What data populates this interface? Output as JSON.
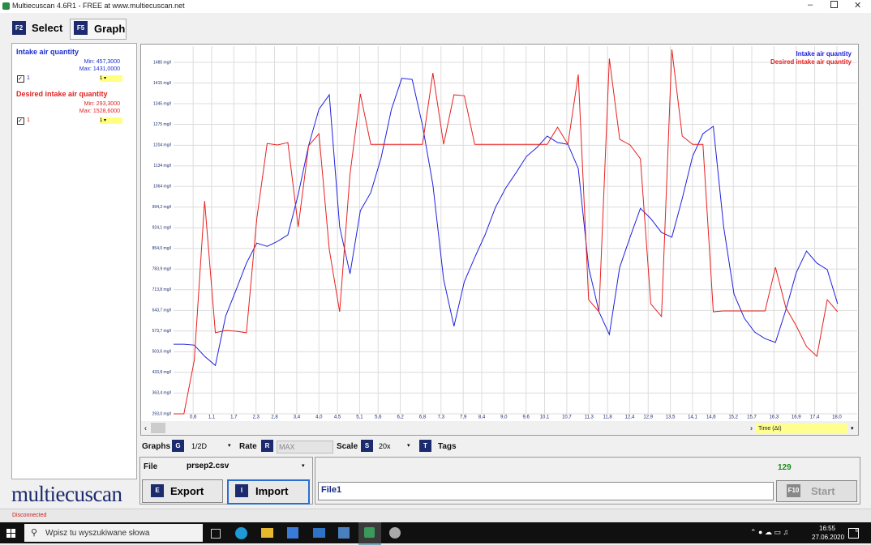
{
  "window": {
    "title": "Multiecuscan 4.6R1 - FREE at www.multiecuscan.net"
  },
  "tabs": [
    {
      "key": "F2",
      "label": "Select"
    },
    {
      "key": "F5",
      "label": "Graph"
    }
  ],
  "sidebar": {
    "params": [
      {
        "name": "Intake air quantity",
        "min": "Min: 457,3000",
        "max": "Max: 1431,0000",
        "check": "1",
        "scale": "1"
      },
      {
        "name": "Desired intake air quantity",
        "min": "Min: 293,3000",
        "max": "Max: 1528,6000",
        "check": "1",
        "scale": "1"
      }
    ]
  },
  "chart_data": {
    "type": "line",
    "x_label": "Time (Δt)",
    "x": [
      0.07,
      0.35,
      0.63,
      0.91,
      1.2,
      1.48,
      1.76,
      2.04,
      2.32,
      2.6,
      2.88,
      3.16,
      3.44,
      3.72,
      4.0,
      4.28,
      4.56,
      4.84,
      5.12,
      5.4,
      5.68,
      5.96,
      6.24,
      6.52,
      6.8,
      7.08,
      7.37,
      7.65,
      7.93,
      8.21,
      8.49,
      8.77,
      9.05,
      9.33,
      9.61,
      9.89,
      10.17,
      10.45,
      10.73,
      11.01,
      11.29,
      11.57,
      11.85,
      12.13,
      12.41,
      12.69,
      12.97,
      13.26,
      13.54,
      13.82,
      14.1,
      14.38,
      14.66,
      14.94,
      15.22,
      15.5,
      15.78,
      16.06,
      16.34,
      16.62,
      16.9,
      17.18,
      17.46,
      17.74,
      18.02
    ],
    "series": [
      {
        "name": "Intake air quantity",
        "color": "#2020e0",
        "values": [
          529,
          529,
          526,
          488,
          457,
          625,
          713,
          804,
          872,
          861,
          878,
          900,
          1037,
          1202,
          1326,
          1375,
          927,
          768,
          982,
          1043,
          1161,
          1326,
          1431,
          1427,
          1271,
          1070,
          749,
          590,
          741,
          823,
          900,
          993,
          1059,
          1111,
          1166,
          1196,
          1235,
          1213,
          1207,
          1125,
          790,
          639,
          562,
          790,
          892,
          990,
          955,
          908,
          892,
          1023,
          1166,
          1243,
          1268,
          927,
          699,
          617,
          570,
          548,
          535,
          645,
          771,
          845,
          804,
          782,
          666
        ]
      },
      {
        "name": "Desired intake air quantity",
        "color": "#e82020",
        "values": [
          293,
          293,
          474,
          1015,
          568,
          576,
          573,
          568,
          955,
          1210,
          1205,
          1213,
          927,
          1202,
          1243,
          850,
          639,
          1106,
          1378,
          1207,
          1207,
          1207,
          1207,
          1207,
          1207,
          1449,
          1207,
          1375,
          1372,
          1207,
          1207,
          1207,
          1207,
          1207,
          1207,
          1207,
          1207,
          1265,
          1207,
          1444,
          680,
          639,
          1498,
          1224,
          1205,
          1158,
          666,
          623,
          1529,
          1235,
          1207,
          1207,
          639,
          642,
          642,
          642,
          642,
          642,
          790,
          653,
          592,
          521,
          488,
          680,
          639
        ]
      }
    ],
    "xlim": [
      0.07,
      18.55
    ],
    "xticks": [
      {
        "value": 0.6,
        "label": "0,6"
      },
      {
        "value": 1.1,
        "label": "1,1"
      },
      {
        "value": 1.7,
        "label": "1,7"
      },
      {
        "value": 2.3,
        "label": "2,3"
      },
      {
        "value": 2.8,
        "label": "2,8"
      },
      {
        "value": 3.4,
        "label": "3,4"
      },
      {
        "value": 4.0,
        "label": "4,0"
      },
      {
        "value": 4.5,
        "label": "4,5"
      },
      {
        "value": 5.1,
        "label": "5,1"
      },
      {
        "value": 5.6,
        "label": "5,6"
      },
      {
        "value": 6.2,
        "label": "6,2"
      },
      {
        "value": 6.8,
        "label": "6,8"
      },
      {
        "value": 7.3,
        "label": "7,3"
      },
      {
        "value": 7.9,
        "label": "7,9"
      },
      {
        "value": 8.4,
        "label": "8,4"
      },
      {
        "value": 9.0,
        "label": "9,0"
      },
      {
        "value": 9.6,
        "label": "9,6"
      },
      {
        "value": 10.1,
        "label": "10,1"
      },
      {
        "value": 10.7,
        "label": "10,7"
      },
      {
        "value": 11.3,
        "label": "11,3"
      },
      {
        "value": 11.8,
        "label": "11,8"
      },
      {
        "value": 12.4,
        "label": "12,4"
      },
      {
        "value": 12.9,
        "label": "12,9"
      },
      {
        "value": 13.5,
        "label": "13,5"
      },
      {
        "value": 14.1,
        "label": "14,1"
      },
      {
        "value": 14.6,
        "label": "14,6"
      },
      {
        "value": 15.2,
        "label": "15,2"
      },
      {
        "value": 15.7,
        "label": "15,7"
      },
      {
        "value": 16.3,
        "label": "16,3"
      },
      {
        "value": 16.9,
        "label": "16,9"
      },
      {
        "value": 17.4,
        "label": "17,4"
      },
      {
        "value": 18.0,
        "label": "18,0"
      }
    ],
    "ylim": [
      293,
      1540
    ],
    "yticks": [
      {
        "value": 293.0,
        "label": "293,0 mg/l"
      },
      {
        "value": 363.4,
        "label": "363,4 mg/l"
      },
      {
        "value": 433.8,
        "label": "433,8 mg/l"
      },
      {
        "value": 503.6,
        "label": "503,6 mg/l"
      },
      {
        "value": 573.7,
        "label": "573,7 mg/l"
      },
      {
        "value": 643.7,
        "label": "643,7 mg/l"
      },
      {
        "value": 713.8,
        "label": "713,8 mg/l"
      },
      {
        "value": 783.9,
        "label": "783,9 mg/l"
      },
      {
        "value": 854.0,
        "label": "854,0 mg/l"
      },
      {
        "value": 924.1,
        "label": "924,1 mg/l"
      },
      {
        "value": 994.2,
        "label": "994,2 mg/l"
      },
      {
        "value": 1064,
        "label": "1064 mg/l"
      },
      {
        "value": 1134,
        "label": "1134 mg/l"
      },
      {
        "value": 1204,
        "label": "1204 mg/l"
      },
      {
        "value": 1275,
        "label": "1275 mg/l"
      },
      {
        "value": 1345,
        "label": "1345 mg/l"
      },
      {
        "value": 1415,
        "label": "1415 mg/l"
      },
      {
        "value": 1485,
        "label": "1485 mg/l"
      }
    ],
    "grid": true,
    "legend": "top-right"
  },
  "toolbar": {
    "graphs_label": "Graphs",
    "graphs_key": "G",
    "graphs_value": "1/2D",
    "rate_label": "Rate",
    "rate_key": "R",
    "rate_value": "MAX",
    "scale_label": "Scale",
    "scale_key": "S",
    "scale_value": "20x",
    "tags_key": "T",
    "tags_label": "Tags"
  },
  "file_panel": {
    "label": "File",
    "file": "prsep2.csv",
    "export_key": "E",
    "export": "Export",
    "import_key": "I",
    "import": "Import"
  },
  "info_panel": {
    "count": "129",
    "name": "File1",
    "start_key": "F10",
    "start": "Start"
  },
  "logo": "multiecuscan",
  "status": "Disconnected",
  "taskbar": {
    "search": "Wpisz tu wyszukiwane słowa",
    "time": "16:55",
    "date": "27.06.2020",
    "notifications": "6"
  }
}
